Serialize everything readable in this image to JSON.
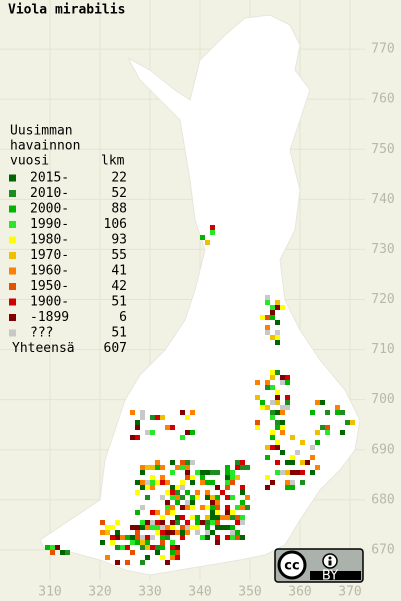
{
  "title": "Viola mirabilis",
  "legend": {
    "heading": [
      "Uusimman",
      "havainnon",
      "vuosi"
    ],
    "count_heading": "lkm",
    "rows": [
      {
        "label": "2015-",
        "count": 22,
        "color": "#006400"
      },
      {
        "label": "2010-",
        "count": 52,
        "color": "#1e8c1e"
      },
      {
        "label": "2000-",
        "count": 88,
        "color": "#00b400"
      },
      {
        "label": "1990-",
        "count": 106,
        "color": "#28e628"
      },
      {
        "label": "1980-",
        "count": 93,
        "color": "#ffff00"
      },
      {
        "label": "1970-",
        "count": 55,
        "color": "#f0c000"
      },
      {
        "label": "1960-",
        "count": 41,
        "color": "#ff8000"
      },
      {
        "label": "1950-",
        "count": 42,
        "color": "#e65000"
      },
      {
        "label": "1900-",
        "count": 51,
        "color": "#d20000"
      },
      {
        "label": "-1899",
        "count": 6,
        "color": "#800000"
      },
      {
        "label": "???",
        "count": 51,
        "color": "#c8c8c8"
      }
    ],
    "total_label": "Yhteensä",
    "total": 607
  },
  "axes": {
    "xlim": [
      302,
      380
    ],
    "ylim": [
      660,
      780
    ],
    "xticks": [
      310,
      320,
      330,
      340,
      350,
      360,
      370
    ],
    "yticks": [
      670,
      680,
      690,
      700,
      710,
      720,
      730,
      740,
      750,
      760,
      770
    ]
  },
  "badge": {
    "cc": "cc",
    "by": "BY"
  }
}
